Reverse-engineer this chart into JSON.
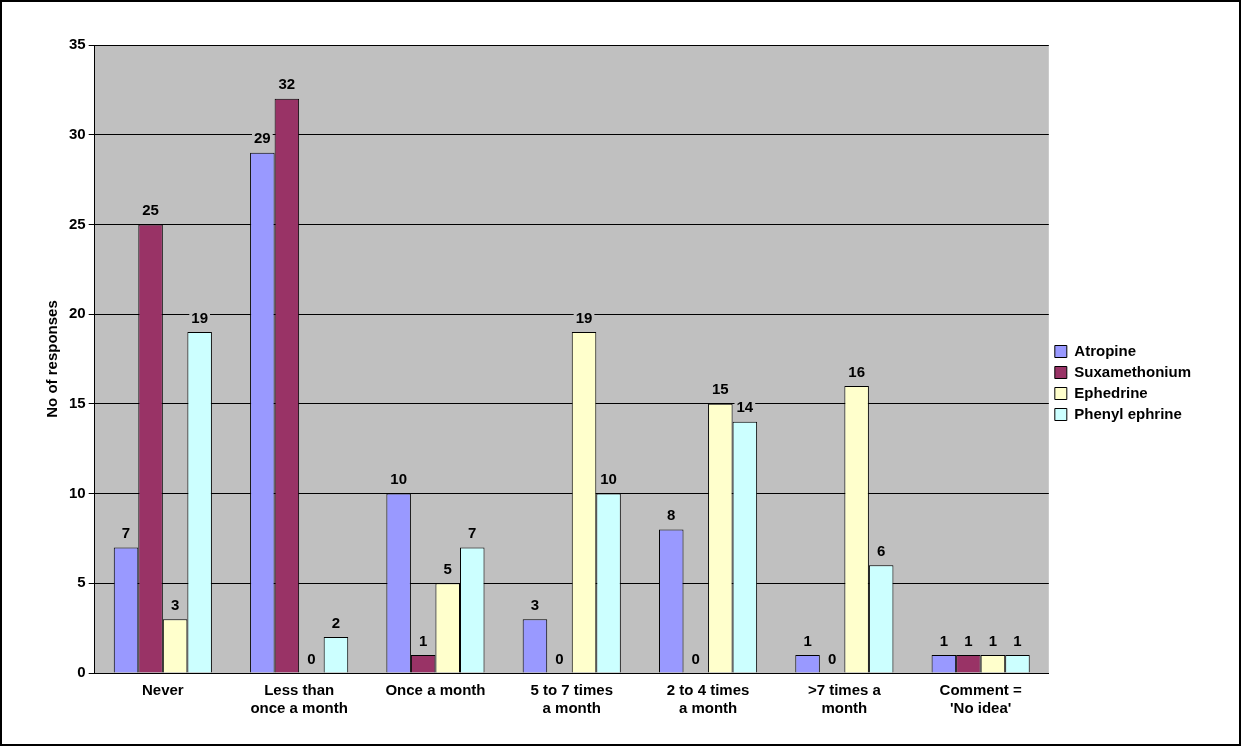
{
  "chart_data": {
    "type": "bar",
    "ylabel": "No of responses",
    "categories": [
      "Never",
      "Less than once a month",
      "Once a month",
      "5 to 7 times a month",
      "2 to 4 times a month",
      ">7 times a month",
      "Comment = 'No idea'"
    ],
    "series": [
      {
        "name": "Atropine",
        "color": "#9999ff",
        "values": [
          7,
          29,
          10,
          3,
          8,
          1,
          1
        ]
      },
      {
        "name": "Suxamethonium",
        "color": "#993366",
        "values": [
          25,
          32,
          1,
          0,
          0,
          0,
          1
        ]
      },
      {
        "name": "Ephedrine",
        "color": "#ffffcc",
        "values": [
          3,
          0,
          5,
          19,
          15,
          16,
          1
        ]
      },
      {
        "name": "Phenyl ephrine",
        "color": "#ccffff",
        "values": [
          19,
          2,
          7,
          10,
          14,
          6,
          1
        ]
      }
    ],
    "ylim": [
      0,
      35
    ],
    "yticks": [
      0,
      5,
      10,
      15,
      20,
      25,
      30,
      35
    ],
    "grid": "y",
    "legend": "right",
    "data_labels": true
  }
}
